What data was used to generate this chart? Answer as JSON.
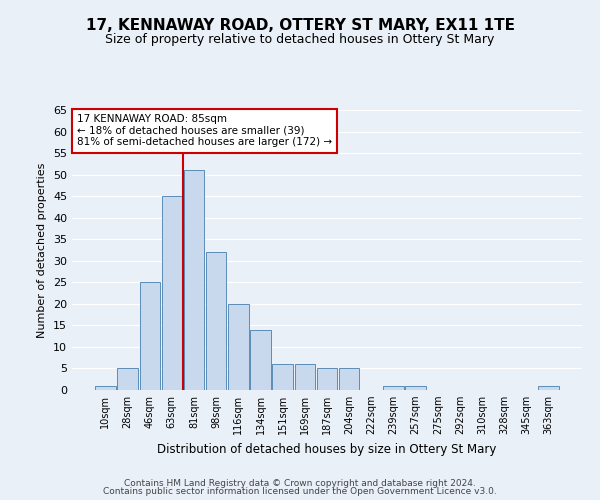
{
  "title": "17, KENNAWAY ROAD, OTTERY ST MARY, EX11 1TE",
  "subtitle": "Size of property relative to detached houses in Ottery St Mary",
  "xlabel": "Distribution of detached houses by size in Ottery St Mary",
  "ylabel": "Number of detached properties",
  "footer1": "Contains HM Land Registry data © Crown copyright and database right 2024.",
  "footer2": "Contains public sector information licensed under the Open Government Licence v3.0.",
  "annotation_title": "17 KENNAWAY ROAD: 85sqm",
  "annotation_line1": "← 18% of detached houses are smaller (39)",
  "annotation_line2": "81% of semi-detached houses are larger (172) →",
  "bar_labels": [
    "10sqm",
    "28sqm",
    "46sqm",
    "63sqm",
    "81sqm",
    "98sqm",
    "116sqm",
    "134sqm",
    "151sqm",
    "169sqm",
    "187sqm",
    "204sqm",
    "222sqm",
    "239sqm",
    "257sqm",
    "275sqm",
    "292sqm",
    "310sqm",
    "328sqm",
    "345sqm",
    "363sqm"
  ],
  "bar_values": [
    1,
    5,
    25,
    45,
    51,
    32,
    20,
    14,
    6,
    6,
    5,
    5,
    0,
    1,
    1,
    0,
    0,
    0,
    0,
    0,
    1
  ],
  "bar_color": "#c8d9ed",
  "bar_edge_color": "#5b8db8",
  "redline_index": 4,
  "ylim": [
    0,
    65
  ],
  "yticks": [
    0,
    5,
    10,
    15,
    20,
    25,
    30,
    35,
    40,
    45,
    50,
    55,
    60,
    65
  ],
  "bg_color": "#eaf0f8",
  "plot_bg_color": "#eaf0f8",
  "grid_color": "#ffffff",
  "annotation_box_color": "#ffffff",
  "annotation_box_edge": "#cc0000",
  "redline_color": "#cc0000",
  "title_fontsize": 11,
  "subtitle_fontsize": 9,
  "ylabel_fontsize": 8,
  "xlabel_fontsize": 8.5,
  "tick_fontsize": 8,
  "xtick_fontsize": 7,
  "annotation_fontsize": 7.5,
  "footer_fontsize": 6.5
}
